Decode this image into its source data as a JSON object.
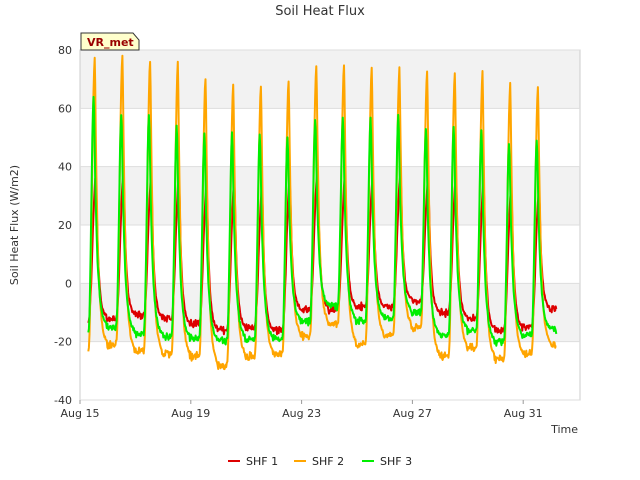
{
  "chart_data": {
    "type": "line",
    "title": "Soil Heat Flux",
    "xlabel": "Time",
    "ylabel": "Soil Heat Flux (W/m2)",
    "ylim": [
      -40,
      80
    ],
    "yticks": [
      -40,
      -20,
      0,
      20,
      40,
      60,
      80
    ],
    "xlim_days": [
      0,
      18
    ],
    "xticks": [
      {
        "day": 0,
        "label": "Aug 15"
      },
      {
        "day": 4,
        "label": "Aug 19"
      },
      {
        "day": 8,
        "label": "Aug 23"
      },
      {
        "day": 12,
        "label": "Aug 27"
      },
      {
        "day": 16,
        "label": "Aug 31"
      }
    ],
    "badge": "VR_met",
    "grid": true,
    "legend_position": "bottom-center",
    "series": [
      {
        "name": "SHF 1",
        "color": "#dd0000",
        "start_day": 0.3,
        "end_day": 17.2,
        "daily_max": [
          37,
          38,
          37,
          37,
          34,
          35,
          33,
          36,
          38,
          37,
          36,
          38,
          36,
          37,
          35,
          33,
          32
        ],
        "daily_min": [
          -13,
          -12,
          -11,
          -12,
          -14,
          -16,
          -15,
          -16,
          -9,
          -9,
          -8,
          -8,
          -6,
          -10,
          -12,
          -16,
          -15,
          -9
        ]
      },
      {
        "name": "SHF 2",
        "color": "#ffa500",
        "start_day": 0.3,
        "end_day": 17.2,
        "daily_max": [
          78,
          79,
          77,
          76,
          71,
          69,
          68,
          70,
          75,
          75,
          74,
          74,
          73,
          73,
          73,
          69,
          68
        ],
        "daily_min": [
          -23,
          -21,
          -23,
          -24,
          -25,
          -28,
          -25,
          -24,
          -18,
          -14,
          -21,
          -18,
          -15,
          -25,
          -22,
          -26,
          -24,
          -21
        ]
      },
      {
        "name": "SHF 3",
        "color": "#00ee00",
        "start_day": 0.3,
        "end_day": 17.2,
        "daily_max": [
          65,
          59,
          59,
          55,
          52,
          52,
          52,
          51,
          57,
          57,
          57,
          58,
          54,
          55,
          53,
          49,
          50
        ],
        "daily_min": [
          -17,
          -15,
          -17,
          -18,
          -19,
          -20,
          -19,
          -19,
          -13,
          -8,
          -13,
          -12,
          -10,
          -18,
          -16,
          -20,
          -18,
          -16
        ]
      }
    ]
  }
}
